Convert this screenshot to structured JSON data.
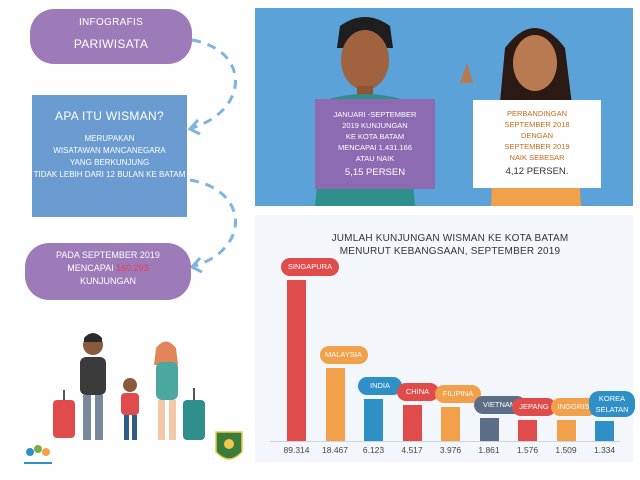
{
  "sidebar": {
    "infografis": "INFOGRAFIS",
    "pariwisata": "PARIWISATA",
    "wisman_heading": "APA ITU WISMAN?",
    "wisman_lines": [
      "MERUPAKAN",
      "WISATAWAN MANCANEGARA",
      "YANG BERKUNJUNG",
      "TIDAK LEBIH DARI 12 BULAN KE BATAM"
    ],
    "september_line1": "PADA SEPTEMBER 2019",
    "september_prefix": "MENCAPAI",
    "september_value": "160.293",
    "september_line3": "KUNJUNGAN"
  },
  "sign_left": {
    "lines": [
      "JANUARI -SEPTEMBER",
      "2019 KUNJUNGAN",
      "KE KOTA BATAM",
      "MENCAPAI 1.431.166",
      "ATAU NAIK"
    ],
    "highlight": "5,15 PERSEN"
  },
  "sign_right": {
    "lines": [
      "PERBANDINGAN",
      "SEPTEMBER 2018",
      "DENGAN",
      "SEPTEMBER 2019",
      "NAIK SEBESAR"
    ],
    "highlight": "4,12 PERSEN."
  },
  "colors": {
    "purple": "#9d7ab8",
    "blue_box": "#6a9bd1",
    "panel": "#5aa2d8"
  },
  "chart_data": {
    "type": "bar",
    "title_line1": "JUMLAH KUNJUNGAN WISMAN KE KOTA BATAM",
    "title_line2": "MENURUT KEBANGSAAN, SEPTEMBER 2019",
    "categories": [
      "SINGAPURA",
      "MALAYSIA",
      "INDIA",
      "CHINA",
      "FILIPINA",
      "VIETNAM",
      "JEPANG",
      "INGGRIS",
      "KOREA SELATAN"
    ],
    "values": [
      89314,
      18467,
      6123,
      4517,
      3976,
      1861,
      1576,
      1509,
      1334
    ],
    "value_labels": [
      "89.314",
      "18.467",
      "6.123",
      "4.517",
      "3.976",
      "1.861",
      "1.576",
      "1.509",
      "1.334"
    ],
    "colors": [
      "#e04b4b",
      "#f2a04a",
      "#2f8fc7",
      "#e04b4b",
      "#f2a04a",
      "#5c6f86",
      "#e04b4b",
      "#f2a04a",
      "#2f8fc7"
    ]
  }
}
